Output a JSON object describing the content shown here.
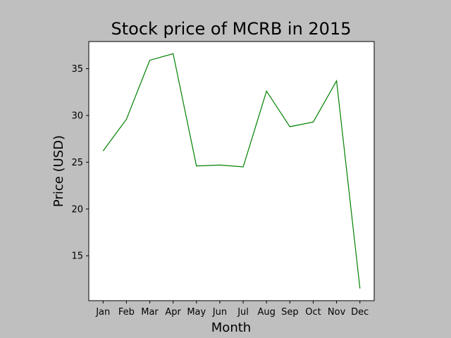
{
  "chart_data": {
    "type": "line",
    "title": "Stock price of MCRB in 2015",
    "xlabel": "Month",
    "ylabel": "Price (USD)",
    "categories": [
      "Jan",
      "Feb",
      "Mar",
      "Apr",
      "May",
      "Jun",
      "Jul",
      "Aug",
      "Sep",
      "Oct",
      "Nov",
      "Dec"
    ],
    "series": [
      {
        "values": [
          26.2,
          29.6,
          35.9,
          36.6,
          24.6,
          24.7,
          24.5,
          32.6,
          28.8,
          29.3,
          33.7,
          11.5
        ],
        "color": "#008000"
      }
    ],
    "yticks": [
      15,
      20,
      25,
      30,
      35
    ],
    "ylim": [
      10.2,
      37.9
    ],
    "grid": false,
    "legend": "none"
  },
  "colors": {
    "figure_background": "#bfbfbf",
    "plot_background": "#ffffff",
    "line": "#008000"
  }
}
